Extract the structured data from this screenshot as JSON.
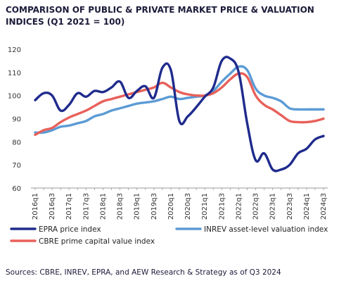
{
  "title": "COMPARISON OF PUBLIC & PRIVATE MARKET PRICE & VALUATION INDICES (Q1 2021 = 100)",
  "source": "Sources: CBRE, INREV, EPRA, and AEW Research & Strategy as of Q3 2024",
  "chart_data": {
    "type": "line",
    "title": "COMPARISON OF PUBLIC & PRIVATE MARKET PRICE & VALUATION INDICES (Q1 2021 = 100)",
    "xlabel": "",
    "ylabel": "",
    "ylim": [
      60,
      120
    ],
    "yticks": [
      60,
      70,
      80,
      90,
      100,
      110,
      120
    ],
    "xticklabels": [
      "2016q1",
      "2016q3",
      "2017q1",
      "2017q3",
      "2018q1",
      "2018q3",
      "2019q1",
      "2019q3",
      "2020q1",
      "2020q3",
      "2021q1",
      "2021q3",
      "2022q1",
      "2022q3",
      "2023q1",
      "2023q3",
      "2024q1",
      "2024q3"
    ],
    "legend_position": "bottom",
    "grid": false,
    "x": [
      "2016q1",
      "2016q2",
      "2016q3",
      "2016q4",
      "2017q1",
      "2017q2",
      "2017q3",
      "2017q4",
      "2018q1",
      "2018q2",
      "2018q3",
      "2018q4",
      "2019q1",
      "2019q2",
      "2019q3",
      "2019q4",
      "2020q1",
      "2020q2",
      "2020q3",
      "2020q4",
      "2021q1",
      "2021q2",
      "2021q3",
      "2021q4",
      "2022q1",
      "2022q2",
      "2022q3",
      "2022q4",
      "2023q1",
      "2023q2",
      "2023q3",
      "2023q4",
      "2024q1",
      "2024q2",
      "2024q3"
    ],
    "series": [
      {
        "name": "EPRA price index",
        "color": "#1f2b8c",
        "values": [
          98,
          101,
          100,
          93.5,
          96,
          101,
          99.5,
          102,
          101.5,
          103.5,
          106,
          99,
          102,
          104,
          99,
          112,
          111,
          89,
          91,
          95,
          99.5,
          103.5,
          115,
          116,
          110,
          88,
          72,
          75,
          68,
          68,
          70,
          75,
          77,
          81,
          82.5
        ]
      },
      {
        "name": "INREV asset-level valuation index",
        "color": "#5b9bd5",
        "values": [
          84,
          84,
          85,
          86.5,
          87,
          88,
          89,
          91,
          92,
          93.5,
          94.5,
          95.5,
          96.5,
          97,
          97.5,
          98.5,
          99.5,
          98.5,
          99,
          99.5,
          100,
          102,
          106,
          109.5,
          112.5,
          111,
          103,
          100,
          99,
          97.5,
          94.5,
          94,
          94,
          94,
          94
        ]
      },
      {
        "name": "CBRE prime capital value index",
        "color": "#e8605a",
        "values": [
          83,
          85,
          86,
          88.5,
          90.5,
          92,
          93.5,
          95.5,
          97.5,
          98.5,
          99.5,
          100.5,
          101.5,
          102.5,
          103.5,
          105.5,
          103.5,
          101.5,
          100.5,
          100,
          100,
          101,
          103.5,
          107,
          109.5,
          108,
          100,
          96,
          94,
          91.5,
          89,
          88.5,
          88.5,
          89,
          90
        ]
      }
    ]
  }
}
